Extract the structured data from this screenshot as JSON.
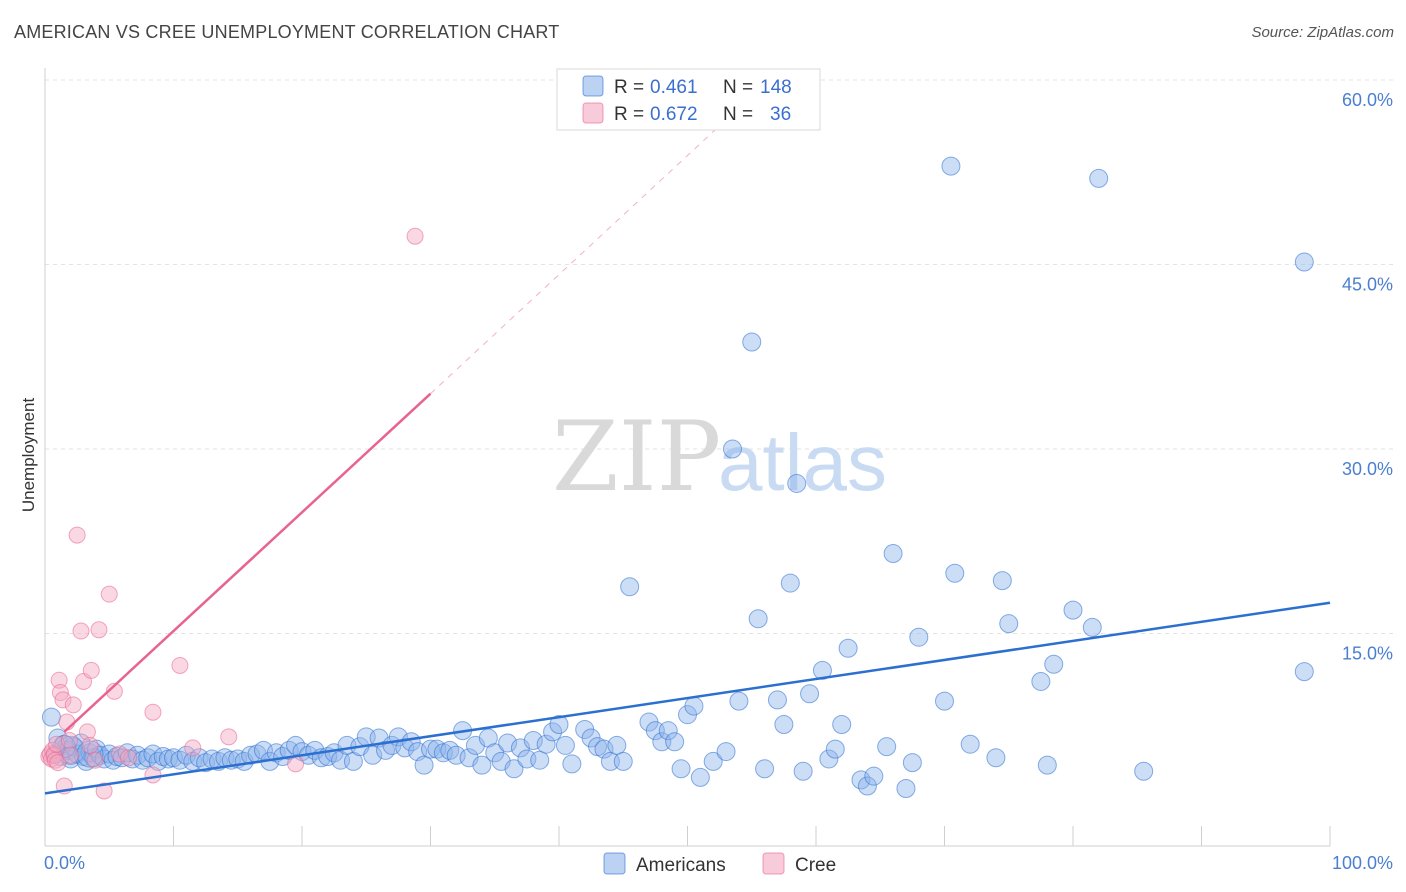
{
  "title": "AMERICAN VS CREE UNEMPLOYMENT CORRELATION CHART",
  "source": "Source: ZipAtlas.com",
  "watermark": {
    "zip": "ZIP",
    "atlas": "atlas"
  },
  "colors": {
    "americans": "#8fb4ea",
    "americans_line": "#2b6fd0",
    "cree": "#f3a9c1",
    "cree_line": "#e8648e",
    "tick_text": "#4a7fd0"
  },
  "legend_box": {
    "row1": {
      "r_label": "R =",
      "r_value": "0.461",
      "n_label": "N =",
      "n_value": "148"
    },
    "row2": {
      "r_label": "R =",
      "r_value": "0.672",
      "n_label": "N =",
      "n_value": "36"
    }
  },
  "bottom_legend": {
    "americans": "Americans",
    "cree": "Cree"
  },
  "chart_data": {
    "type": "scatter",
    "xlabel": "",
    "ylabel": "Unemployment",
    "xlim": [
      0,
      100
    ],
    "ylim": [
      0,
      60
    ],
    "x_tick_labels": [
      "0.0%",
      "100.0%"
    ],
    "y_ticks": [
      15,
      30,
      45,
      60
    ],
    "y_tick_labels": [
      "15.0%",
      "30.0%",
      "45.0%",
      "60.0%"
    ],
    "legend_position": "top-center",
    "grid": true,
    "series": [
      {
        "name": "Americans",
        "R": 0.461,
        "N": 148,
        "trend": {
          "x": [
            0,
            100
          ],
          "y": [
            2.0,
            17.5
          ]
        },
        "points": [
          [
            0.5,
            8.2
          ],
          [
            0.8,
            5.2
          ],
          [
            1.0,
            6.5
          ],
          [
            1.2,
            5.0
          ],
          [
            1.5,
            6.0
          ],
          [
            1.8,
            5.5
          ],
          [
            2.0,
            4.8
          ],
          [
            2.2,
            5.8
          ],
          [
            2.5,
            5.2
          ],
          [
            2.8,
            6.1
          ],
          [
            3.0,
            5.0
          ],
          [
            3.2,
            4.6
          ],
          [
            3.5,
            5.3
          ],
          [
            3.8,
            4.9
          ],
          [
            4.0,
            5.6
          ],
          [
            4.3,
            5.1
          ],
          [
            4.6,
            4.8
          ],
          [
            5.0,
            5.2
          ],
          [
            5.3,
            4.7
          ],
          [
            5.6,
            5.0
          ],
          [
            6.0,
            4.9
          ],
          [
            6.4,
            5.3
          ],
          [
            6.8,
            4.8
          ],
          [
            7.2,
            5.1
          ],
          [
            7.6,
            4.7
          ],
          [
            8.0,
            4.9
          ],
          [
            8.4,
            5.2
          ],
          [
            8.8,
            4.6
          ],
          [
            9.2,
            5.0
          ],
          [
            9.6,
            4.8
          ],
          [
            10,
            4.9
          ],
          [
            10.5,
            4.7
          ],
          [
            11,
            5.1
          ],
          [
            11.5,
            4.6
          ],
          [
            12,
            4.9
          ],
          [
            12.5,
            4.5
          ],
          [
            13,
            4.8
          ],
          [
            13.5,
            4.6
          ],
          [
            14,
            4.9
          ],
          [
            14.5,
            4.7
          ],
          [
            15,
            4.8
          ],
          [
            15.5,
            4.6
          ],
          [
            16,
            5.1
          ],
          [
            16.5,
            5.2
          ],
          [
            17,
            5.5
          ],
          [
            17.5,
            4.6
          ],
          [
            18,
            5.3
          ],
          [
            18.5,
            5.0
          ],
          [
            19,
            5.5
          ],
          [
            19.5,
            5.9
          ],
          [
            20,
            5.4
          ],
          [
            20.5,
            5.1
          ],
          [
            21,
            5.5
          ],
          [
            21.5,
            4.9
          ],
          [
            22,
            5.0
          ],
          [
            22.5,
            5.3
          ],
          [
            23,
            4.7
          ],
          [
            23.5,
            5.9
          ],
          [
            24,
            4.6
          ],
          [
            24.5,
            5.8
          ],
          [
            25,
            6.6
          ],
          [
            25.5,
            5.1
          ],
          [
            26,
            6.5
          ],
          [
            26.5,
            5.5
          ],
          [
            27,
            5.9
          ],
          [
            27.5,
            6.6
          ],
          [
            28,
            5.7
          ],
          [
            28.5,
            6.2
          ],
          [
            29,
            5.4
          ],
          [
            29.5,
            4.3
          ],
          [
            30,
            5.6
          ],
          [
            30.5,
            5.6
          ],
          [
            31,
            5.3
          ],
          [
            31.5,
            5.5
          ],
          [
            32,
            5.1
          ],
          [
            32.5,
            7.1
          ],
          [
            33,
            4.9
          ],
          [
            33.5,
            5.9
          ],
          [
            34,
            4.3
          ],
          [
            34.5,
            6.5
          ],
          [
            35,
            5.3
          ],
          [
            35.5,
            4.6
          ],
          [
            36,
            6.1
          ],
          [
            36.5,
            4.0
          ],
          [
            37,
            5.7
          ],
          [
            37.5,
            4.8
          ],
          [
            38,
            6.3
          ],
          [
            38.5,
            4.7
          ],
          [
            39,
            6.0
          ],
          [
            39.5,
            7.0
          ],
          [
            40,
            7.6
          ],
          [
            40.5,
            5.9
          ],
          [
            41,
            4.4
          ],
          [
            42,
            7.2
          ],
          [
            42.5,
            6.5
          ],
          [
            43,
            5.8
          ],
          [
            43.5,
            5.6
          ],
          [
            44,
            4.6
          ],
          [
            44.5,
            5.9
          ],
          [
            45,
            4.6
          ],
          [
            45.5,
            18.8
          ],
          [
            47,
            7.8
          ],
          [
            47.5,
            7.1
          ],
          [
            48,
            6.2
          ],
          [
            48.5,
            7.1
          ],
          [
            49,
            6.2
          ],
          [
            49.5,
            4.0
          ],
          [
            50,
            8.4
          ],
          [
            50.5,
            9.1
          ],
          [
            51,
            3.3
          ],
          [
            52,
            4.6
          ],
          [
            53,
            5.4
          ],
          [
            53.5,
            30.0
          ],
          [
            54,
            9.5
          ],
          [
            55,
            38.7
          ],
          [
            55.5,
            16.2
          ],
          [
            56,
            4.0
          ],
          [
            57,
            9.6
          ],
          [
            57.5,
            7.6
          ],
          [
            58,
            19.1
          ],
          [
            58.5,
            27.2
          ],
          [
            59,
            3.8
          ],
          [
            59.5,
            10.1
          ],
          [
            60.5,
            12.0
          ],
          [
            61,
            4.8
          ],
          [
            61.5,
            5.6
          ],
          [
            62,
            7.6
          ],
          [
            62.5,
            13.8
          ],
          [
            63.5,
            3.1
          ],
          [
            64,
            2.6
          ],
          [
            64.5,
            3.4
          ],
          [
            65.5,
            5.8
          ],
          [
            66,
            21.5
          ],
          [
            67,
            2.4
          ],
          [
            67.5,
            4.5
          ],
          [
            68,
            14.7
          ],
          [
            70,
            9.5
          ],
          [
            70.5,
            53.0
          ],
          [
            70.8,
            19.9
          ],
          [
            72,
            6.0
          ],
          [
            74,
            4.9
          ],
          [
            74.5,
            19.3
          ],
          [
            75,
            15.8
          ],
          [
            77.5,
            11.1
          ],
          [
            78,
            4.3
          ],
          [
            78.5,
            12.5
          ],
          [
            80,
            16.9
          ],
          [
            81.5,
            15.5
          ],
          [
            82,
            52.0
          ],
          [
            85.5,
            3.8
          ],
          [
            98,
            45.2
          ],
          [
            98,
            11.9
          ]
        ]
      },
      {
        "name": "Cree",
        "R": 0.672,
        "N": 36,
        "trend": {
          "x": [
            1.5,
            30
          ],
          "y": [
            7.0,
            34.5
          ]
        },
        "trend_extension": {
          "x": [
            30,
            55
          ],
          "y": [
            34.5,
            58.7
          ]
        },
        "points": [
          [
            0.3,
            5.0
          ],
          [
            0.4,
            5.2
          ],
          [
            0.5,
            4.8
          ],
          [
            0.6,
            5.5
          ],
          [
            0.7,
            5.1
          ],
          [
            0.8,
            4.7
          ],
          [
            0.9,
            6.0
          ],
          [
            1.0,
            4.5
          ],
          [
            1.1,
            11.2
          ],
          [
            1.2,
            10.2
          ],
          [
            1.4,
            9.6
          ],
          [
            1.5,
            2.6
          ],
          [
            1.7,
            7.8
          ],
          [
            1.9,
            6.3
          ],
          [
            2.0,
            5.1
          ],
          [
            2.2,
            9.2
          ],
          [
            2.5,
            23.0
          ],
          [
            2.8,
            15.2
          ],
          [
            3.0,
            11.1
          ],
          [
            3.3,
            7.0
          ],
          [
            3.6,
            12.0
          ],
          [
            3.9,
            4.7
          ],
          [
            4.2,
            15.3
          ],
          [
            4.6,
            2.2
          ],
          [
            5.0,
            18.2
          ],
          [
            5.4,
            10.3
          ],
          [
            5.8,
            5.2
          ],
          [
            6.5,
            4.9
          ],
          [
            8.4,
            8.6
          ],
          [
            8.4,
            3.5
          ],
          [
            10.5,
            12.4
          ],
          [
            11.5,
            5.7
          ],
          [
            14.3,
            6.6
          ],
          [
            19.5,
            4.4
          ],
          [
            28.8,
            47.3
          ],
          [
            3.5,
            5.9
          ]
        ]
      }
    ]
  }
}
